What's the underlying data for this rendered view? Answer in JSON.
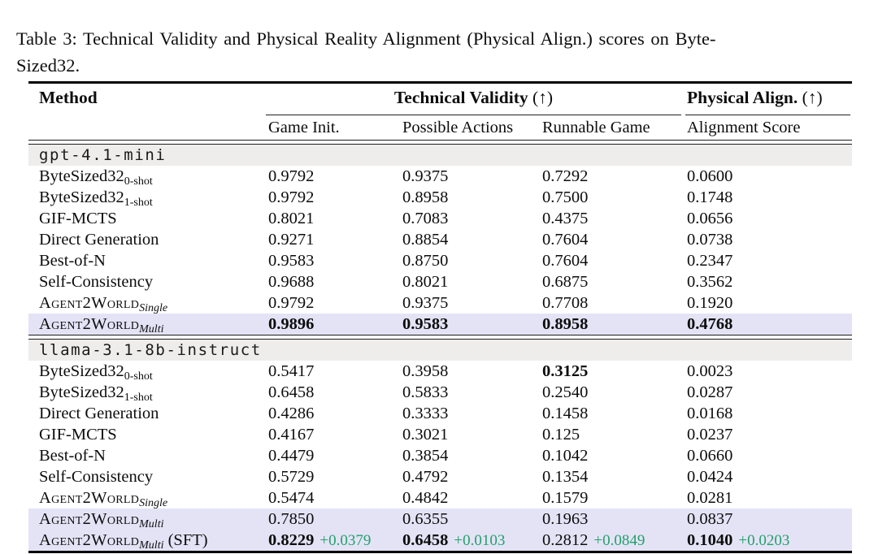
{
  "caption": {
    "line1": "Table 3: Technical Validity and Physical Reality Alignment (Physical Align.)  scores on Byte-",
    "line2": "Sized32."
  },
  "colors": {
    "highlight_row": "#e4e3f6",
    "model_row_bg": "#eeedeb",
    "delta_green": "#22a06a",
    "text": "#0d0d0d"
  },
  "header": {
    "method": "Method",
    "group1": "Technical Validity",
    "group1_arrow": "(↑)",
    "group2": "Physical Align.",
    "group2_arrow": "(↑)",
    "sub1": "Game Init.",
    "sub2": "Possible Actions",
    "sub3": "Runnable Game",
    "sub4": "Alignment Score"
  },
  "sections": [
    {
      "model": "gpt-4.1-mini",
      "rows": [
        {
          "method_main": "ByteSized32",
          "method_sub": "0-shot",
          "cells": [
            "0.9792",
            "0.9375",
            "0.7292",
            "0.0600"
          ]
        },
        {
          "method_main": "ByteSized32",
          "method_sub": "1-shot",
          "cells": [
            "0.9792",
            "0.8958",
            "0.7500",
            "0.1748"
          ]
        },
        {
          "method_main": "GIF-MCTS",
          "cells": [
            "0.8021",
            "0.7083",
            "0.4375",
            "0.0656"
          ]
        },
        {
          "method_main": "Direct Generation",
          "cells": [
            "0.9271",
            "0.8854",
            "0.7604",
            "0.0738"
          ]
        },
        {
          "method_main": "Best-of-N",
          "cells": [
            "0.9583",
            "0.8750",
            "0.7604",
            "0.2347"
          ]
        },
        {
          "method_main": "Self-Consistency",
          "cells": [
            "0.9688",
            "0.8021",
            "0.6875",
            "0.3562"
          ]
        },
        {
          "method_main": "Agent2World",
          "method_sub": "Single",
          "cells": [
            "0.9792",
            "0.9375",
            "0.7708",
            "0.1920"
          ]
        },
        {
          "method_main": "Agent2World",
          "method_sub": "Multi",
          "cells": [
            "0.9896",
            "0.9583",
            "0.8958",
            "0.4768"
          ]
        }
      ]
    },
    {
      "model": "llama-3.1-8b-instruct",
      "rows": [
        {
          "method_main": "ByteSized32",
          "method_sub": "0-shot",
          "cells": [
            "0.5417",
            "0.3958",
            "0.3125",
            "0.0023"
          ]
        },
        {
          "method_main": "ByteSized32",
          "method_sub": "1-shot",
          "cells": [
            "0.6458",
            "0.5833",
            "0.2540",
            "0.0287"
          ]
        },
        {
          "method_main": "Direct Generation",
          "cells": [
            "0.4286",
            "0.3333",
            "0.1458",
            "0.0168"
          ]
        },
        {
          "method_main": "GIF-MCTS",
          "cells": [
            "0.4167",
            "0.3021",
            "0.125",
            "0.0237"
          ]
        },
        {
          "method_main": "Best-of-N",
          "cells": [
            "0.4479",
            "0.3854",
            "0.1042",
            "0.0660"
          ]
        },
        {
          "method_main": "Self-Consistency",
          "cells": [
            "0.5729",
            "0.4792",
            "0.1354",
            "0.0424"
          ]
        },
        {
          "method_main": "Agent2World",
          "method_sub": "Single",
          "cells": [
            "0.5474",
            "0.4842",
            "0.1579",
            "0.0281"
          ]
        },
        {
          "method_main": "Agent2World",
          "method_sub": "Multi",
          "cells": [
            "0.7850",
            "0.6355",
            "0.1963",
            "0.0837"
          ]
        },
        {
          "method_main": "Agent2World",
          "method_sub": "Multi",
          "method_suffix": " (SFT)",
          "cells": [
            "0.8229",
            "0.6458",
            "0.2812",
            "0.1040"
          ],
          "deltas": [
            "+0.0379",
            "+0.0103",
            "+0.0849",
            "+0.0203"
          ]
        }
      ]
    }
  ]
}
